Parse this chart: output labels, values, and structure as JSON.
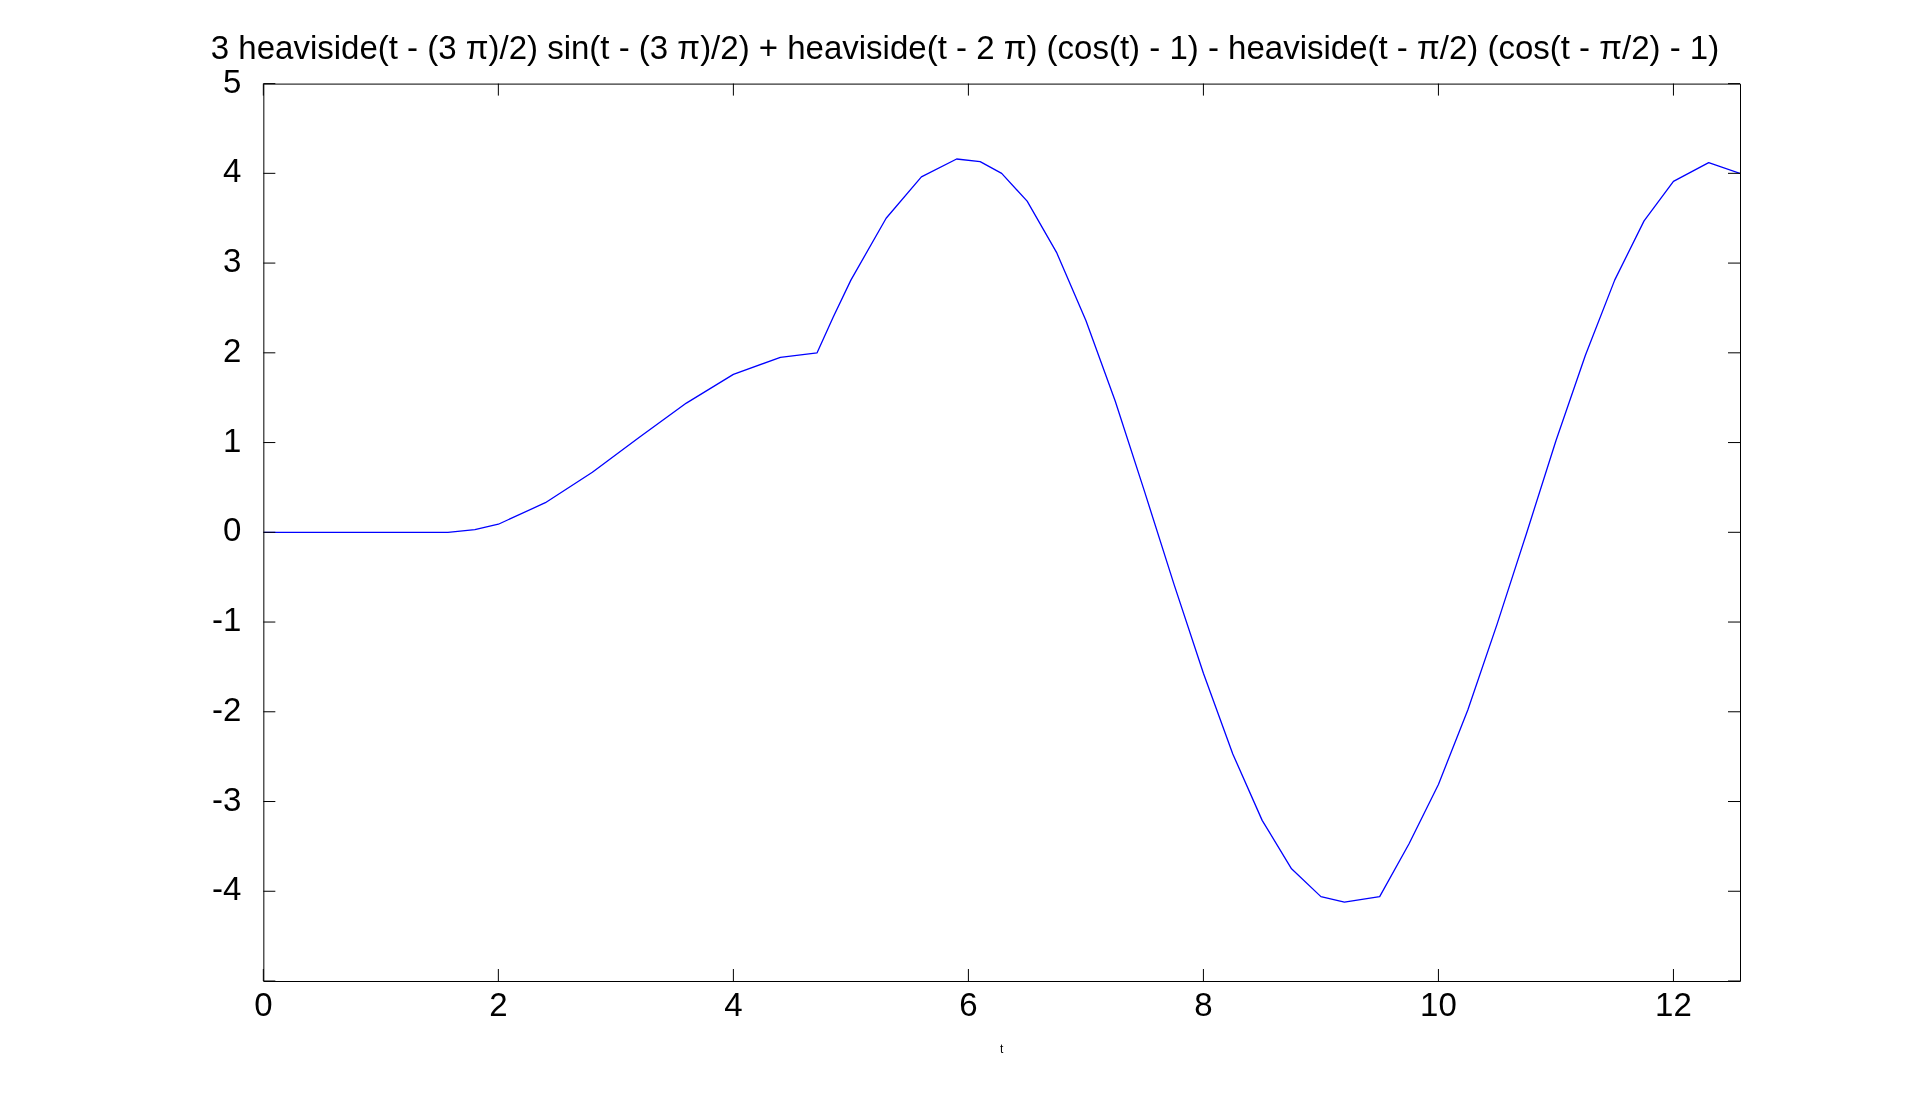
{
  "chart_data": {
    "type": "line",
    "title": "3 heaviside(t - (3 π)/2) sin(t - (3 π)/2) + heaviside(t - 2 π) (cos(t) - 1) - heaviside(t - π/2) (cos(t - π/2) - 1)",
    "xlabel": "t",
    "x": [
      0,
      1.5708,
      1.8,
      2,
      2.4,
      2.8,
      3.2,
      3.6,
      4,
      4.4,
      4.7124,
      4.85,
      5,
      5.3,
      5.6,
      5.9,
      6.1,
      6.2832,
      6.5,
      6.75,
      7,
      7.25,
      7.5,
      7.75,
      8,
      8.25,
      8.5,
      8.75,
      9,
      9.2,
      9.5,
      9.75,
      10,
      10.25,
      10.5,
      10.75,
      11,
      11.25,
      11.5,
      11.75,
      12,
      12.3,
      12.5664
    ],
    "series": [
      {
        "color": "#0000ff",
        "values": [
          0,
          0,
          0.03,
          0.09,
          0.33,
          0.67,
          1.06,
          1.44,
          1.76,
          1.95,
          2,
          2.4,
          2.81,
          3.5,
          3.96,
          4.16,
          4.13,
          4,
          3.69,
          3.12,
          2.36,
          1.46,
          0.45,
          -0.58,
          -1.57,
          -2.47,
          -3.21,
          -3.75,
          -4.06,
          -4.12,
          -4.06,
          -3.47,
          -2.81,
          -1.98,
          -1.02,
          -0.01,
          1.02,
          1.97,
          2.81,
          3.47,
          3.91,
          4.12,
          4
        ]
      }
    ],
    "xlim": [
      0,
      12.5664
    ],
    "xticks": [
      0,
      2,
      4,
      6,
      8,
      10,
      12
    ],
    "ylim": [
      -5,
      5
    ],
    "yticks": [
      {
        "value": -5,
        "label": null
      },
      -4,
      -3,
      -2,
      -1,
      0,
      1,
      2,
      3,
      4,
      5
    ],
    "grid": false,
    "legend": false,
    "marker": "none",
    "line_style": "solid"
  }
}
